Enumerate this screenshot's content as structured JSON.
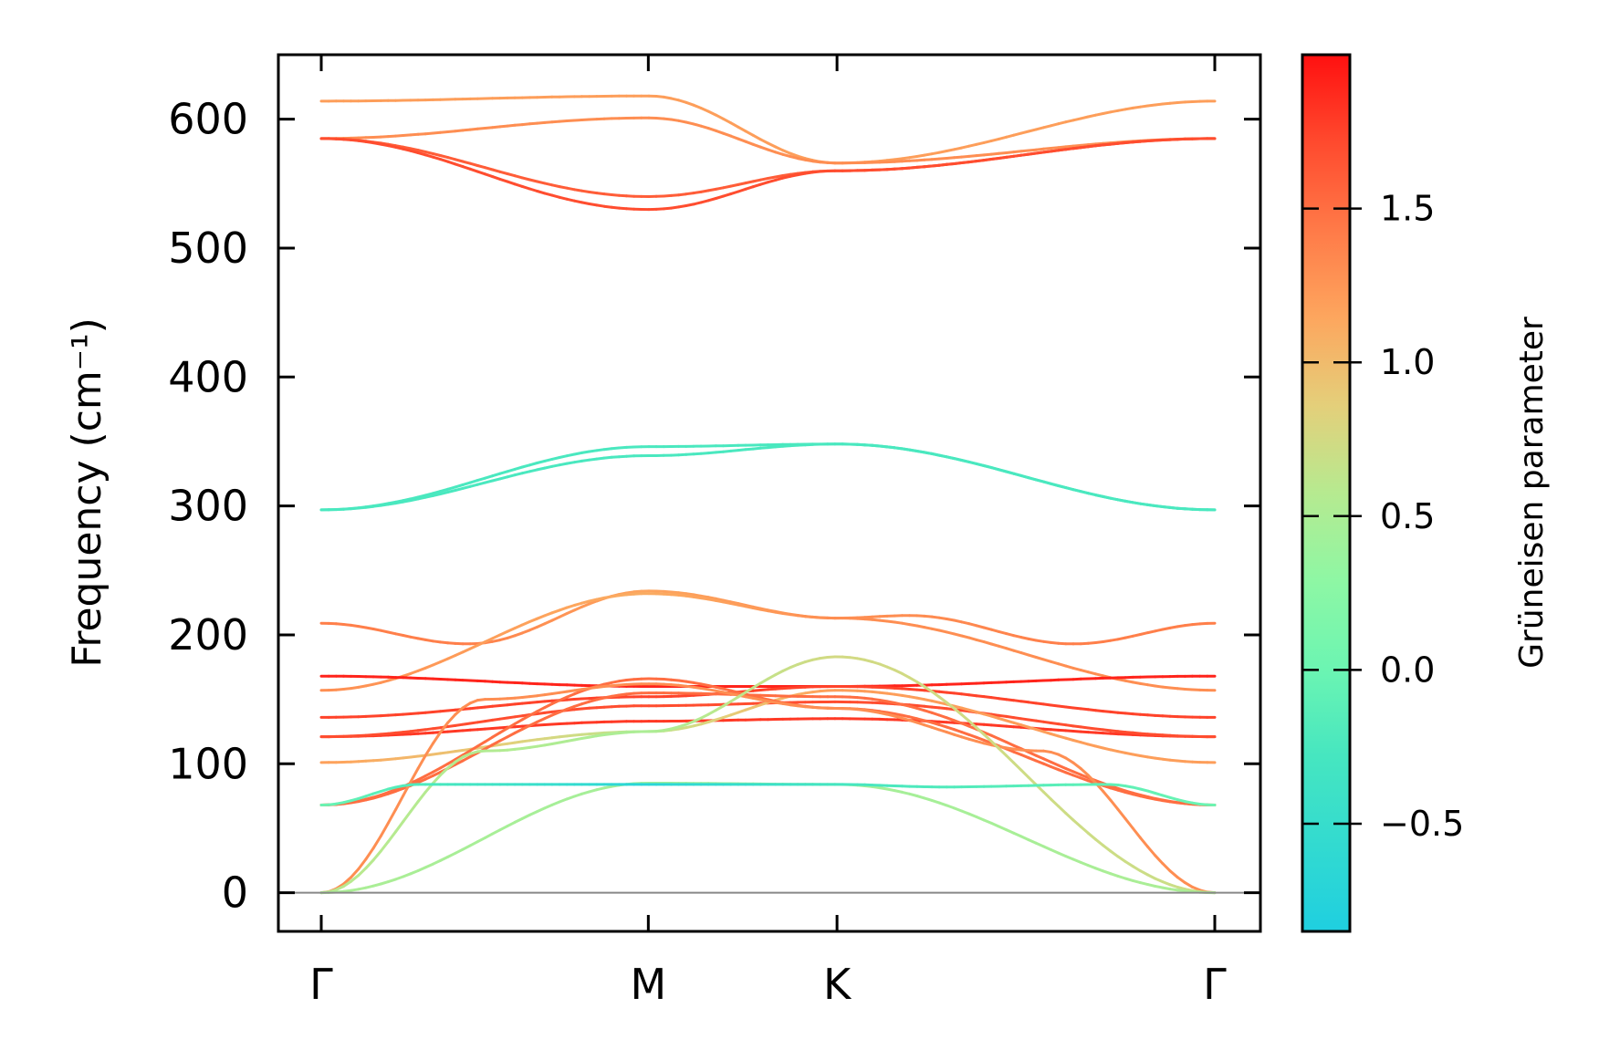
{
  "chart_data": {
    "type": "line",
    "ylabel": "Frequency (cm⁻¹)",
    "ylim": [
      -30,
      650
    ],
    "yticks": [
      "0",
      "100",
      "200",
      "300",
      "400",
      "500",
      "600"
    ],
    "kpoints": [
      {
        "label": "Γ",
        "x": 0.0
      },
      {
        "label": "M",
        "x": 1.0
      },
      {
        "label": "K",
        "x": 1.577
      },
      {
        "label": "Γ",
        "x": 2.732
      }
    ],
    "colorbar": {
      "label": "Grüneisen parameter",
      "range": [
        -0.85,
        2.0
      ],
      "ticks": [
        "−0.5",
        "0.0",
        "0.5",
        "1.0",
        "1.5"
      ],
      "tick_values": [
        -0.5,
        0.0,
        0.5,
        1.0,
        1.5
      ]
    },
    "series": [
      {
        "x": [
          0,
          1,
          1.577,
          2.732
        ],
        "values": [
          614,
          618,
          566,
          614
        ],
        "gamma": [
          1.2,
          1.2,
          1.2,
          1.2
        ]
      },
      {
        "x": [
          0,
          1,
          1.577,
          2.732
        ],
        "values": [
          585,
          601,
          566,
          585
        ],
        "gamma": [
          1.3,
          1.3,
          1.3,
          1.3
        ]
      },
      {
        "x": [
          0,
          1,
          1.577,
          2.732
        ],
        "values": [
          585,
          540,
          560,
          585
        ],
        "gamma": [
          1.6,
          1.6,
          1.6,
          1.6
        ]
      },
      {
        "x": [
          0,
          1,
          1.577,
          2.732
        ],
        "values": [
          585,
          530,
          560,
          585
        ],
        "gamma": [
          1.7,
          1.7,
          1.7,
          1.7
        ]
      },
      {
        "x": [
          0,
          1,
          1.577,
          2.732
        ],
        "values": [
          297,
          346,
          348,
          297
        ],
        "gamma": [
          -0.25,
          -0.25,
          -0.25,
          -0.25
        ]
      },
      {
        "x": [
          0,
          1,
          1.577,
          2.732
        ],
        "values": [
          297,
          339,
          348,
          297
        ],
        "gamma": [
          -0.25,
          -0.25,
          -0.25,
          -0.25
        ]
      },
      {
        "x": [
          0,
          0.45,
          1,
          1.577,
          1.8,
          2.3,
          2.732
        ],
        "values": [
          209,
          193,
          234,
          213,
          215,
          193,
          209
        ],
        "gamma": [
          1.4,
          1.4,
          1.15,
          1.3,
          1.3,
          1.4,
          1.4
        ]
      },
      {
        "x": [
          0,
          1,
          1.577,
          2.732
        ],
        "values": [
          157,
          232,
          213,
          157
        ],
        "gamma": [
          1.3,
          1.1,
          1.3,
          1.3
        ]
      },
      {
        "x": [
          0,
          1,
          1.577,
          2.732
        ],
        "values": [
          168,
          160,
          160,
          168
        ],
        "gamma": [
          1.9,
          1.9,
          1.9,
          1.9
        ]
      },
      {
        "x": [
          0,
          1,
          1.577,
          2.732
        ],
        "values": [
          136,
          152,
          160,
          136
        ],
        "gamma": [
          1.75,
          1.75,
          1.75,
          1.75
        ]
      },
      {
        "x": [
          0,
          1,
          1.577,
          2.732
        ],
        "values": [
          121,
          133,
          135,
          121
        ],
        "gamma": [
          1.8,
          1.8,
          1.8,
          1.8
        ]
      },
      {
        "x": [
          0,
          1,
          1.577,
          2.732
        ],
        "values": [
          121,
          145,
          148,
          121
        ],
        "gamma": [
          1.7,
          1.7,
          1.7,
          1.7
        ]
      },
      {
        "x": [
          0,
          1,
          1.577,
          2.732
        ],
        "values": [
          101,
          125,
          157,
          101
        ],
        "gamma": [
          1.2,
          0.6,
          1.2,
          1.2
        ]
      },
      {
        "x": [
          0,
          1,
          1.577,
          2.732
        ],
        "values": [
          68,
          166,
          143,
          68
        ],
        "gamma": [
          1.5,
          1.5,
          1.5,
          1.5
        ]
      },
      {
        "x": [
          0,
          1,
          1.577,
          2.732
        ],
        "values": [
          68,
          155,
          152,
          68
        ],
        "gamma": [
          1.5,
          1.5,
          1.5,
          1.5
        ]
      },
      {
        "x": [
          0,
          0.5,
          1,
          1.577,
          2.2,
          2.732
        ],
        "values": [
          0,
          150,
          162,
          143,
          110,
          0
        ],
        "gamma": [
          1.3,
          1.3,
          1.3,
          1.3,
          1.3,
          1.3
        ]
      },
      {
        "x": [
          0,
          0.5,
          1,
          1.577,
          2.732
        ],
        "values": [
          0,
          110,
          125,
          183,
          0
        ],
        "gamma": [
          0.6,
          0.55,
          0.5,
          0.75,
          0.7
        ]
      },
      {
        "x": [
          0,
          1,
          1.577,
          2.732
        ],
        "values": [
          0,
          85,
          84,
          0
        ],
        "gamma": [
          0.5,
          0.45,
          0.45,
          0.5
        ]
      },
      {
        "x": [
          0,
          0.3,
          1,
          1.577,
          1.9,
          2.4,
          2.732
        ],
        "values": [
          68,
          84,
          84,
          84,
          82,
          84,
          68
        ],
        "gamma": [
          0.0,
          -0.2,
          -0.7,
          -0.3,
          -0.2,
          -0.1,
          0.0
        ]
      }
    ]
  }
}
